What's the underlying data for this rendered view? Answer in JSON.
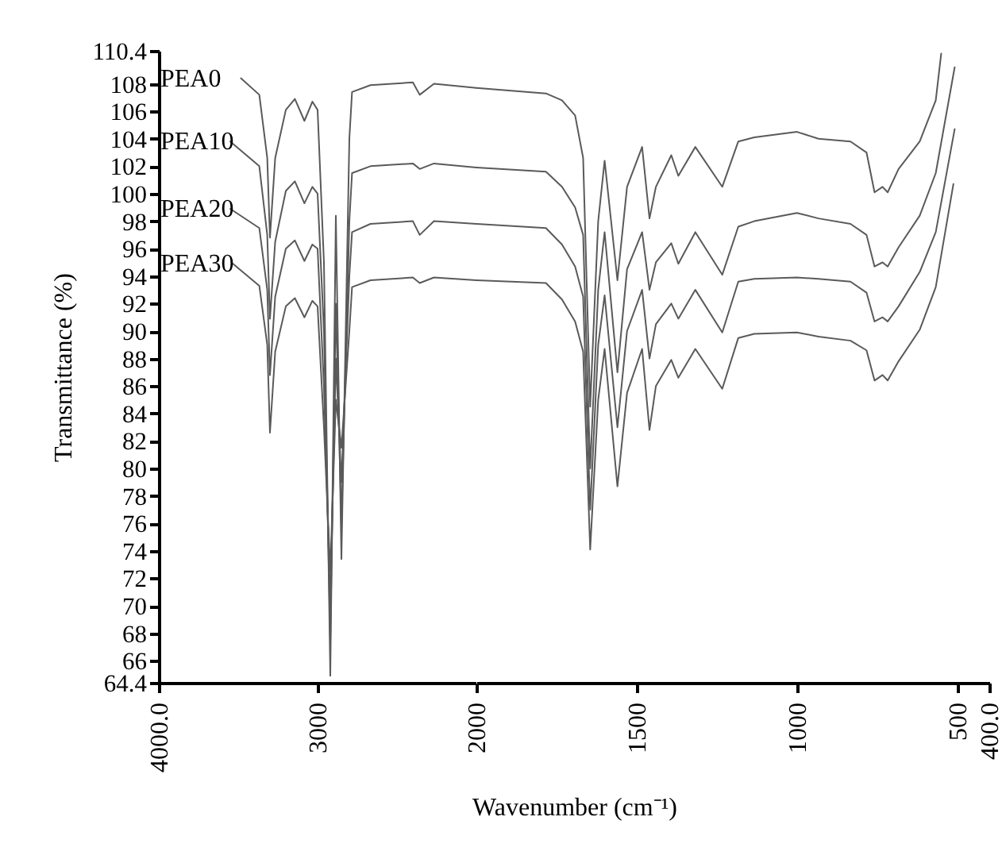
{
  "chart_data": [
    {
      "type": "line",
      "ylabel": "Transmittance (%)",
      "xlim": [
        4000,
        2000
      ],
      "xticks": [
        {
          "value": 4000,
          "label": "4000.0"
        },
        3000
      ],
      "ylim": [
        64.4,
        110.4
      ],
      "yticks": [
        64.4,
        66,
        68,
        70,
        72,
        74,
        76,
        78,
        80,
        82,
        84,
        86,
        88,
        90,
        92,
        94,
        96,
        98,
        100,
        102,
        104,
        106,
        108,
        110.4
      ],
      "grid": false,
      "legend": false,
      "series": [
        {
          "name": "PEA0",
          "color": "#5a5a5a",
          "x": [
            3483,
            3367,
            3317,
            3300,
            3267,
            3200,
            3143,
            3083,
            3033,
            3000,
            2960,
            2920,
            2885,
            2850,
            2800,
            2783,
            2667,
            2400,
            2357,
            2267,
            2000
          ],
          "values": [
            108.4,
            107.2,
            102.6,
            96.8,
            102.6,
            106.1,
            106.9,
            105.3,
            106.7,
            106.1,
            95.0,
            64.9,
            98.4,
            73.4,
            104.0,
            107.4,
            107.9,
            108.1,
            107.2,
            108.0,
            107.7
          ]
        },
        {
          "name": "PEA10",
          "color": "#5a5a5a",
          "x": [
            3550,
            3367,
            3317,
            3300,
            3267,
            3200,
            3143,
            3083,
            3033,
            3000,
            2960,
            2920,
            2885,
            2850,
            2800,
            2783,
            2667,
            2400,
            2357,
            2267,
            2000
          ],
          "values": [
            103.8,
            102.0,
            97,
            90.9,
            96.5,
            100.2,
            100.9,
            99.3,
            100.5,
            100.0,
            90,
            67.5,
            92,
            76,
            98,
            101.5,
            102.0,
            102.2,
            101.8,
            102.2,
            101.9
          ]
        },
        {
          "name": "PEA20",
          "color": "#5a5a5a",
          "x": [
            3550,
            3367,
            3317,
            3300,
            3267,
            3200,
            3143,
            3083,
            3033,
            3000,
            2960,
            2920,
            2885,
            2850,
            2800,
            2783,
            2667,
            2400,
            2357,
            2267,
            2000
          ],
          "values": [
            98.9,
            97.5,
            93,
            86.8,
            92.5,
            96.0,
            96.6,
            95.1,
            96.3,
            96.0,
            86,
            70.0,
            88,
            79,
            94,
            97.2,
            97.8,
            98.0,
            97.0,
            98.0,
            97.8
          ]
        },
        {
          "name": "PEA30",
          "color": "#5a5a5a",
          "x": [
            3533,
            3367,
            3317,
            3300,
            3267,
            3200,
            3143,
            3083,
            3033,
            3000,
            2960,
            2920,
            2885,
            2850,
            2800,
            2783,
            2667,
            2400,
            2357,
            2267,
            2000
          ],
          "values": [
            94.9,
            93.3,
            89,
            82.6,
            88.5,
            91.8,
            92.4,
            91.0,
            92.2,
            91.8,
            83,
            72.5,
            85,
            81.5,
            90,
            93.2,
            93.7,
            93.9,
            93.5,
            93.9,
            93.7
          ]
        }
      ]
    },
    {
      "type": "line",
      "xlabel": "Wavenumber (cm⁻¹)",
      "xlim": [
        2000,
        400
      ],
      "xticks": [
        2000,
        1500,
        1000,
        500,
        {
          "value": 400,
          "label": "400.0"
        }
      ],
      "ylim": [
        64.4,
        110.4
      ],
      "tick_labels": "x",
      "grid": false,
      "legend": false,
      "series": [
        {
          "color": "#5a5a5a",
          "x": [
            2000,
            1783,
            1733,
            1692,
            1667,
            1645,
            1620,
            1600,
            1560,
            1530,
            1483,
            1460,
            1440,
            1392,
            1370,
            1317,
            1233,
            1183,
            1133,
            1000,
            933,
            833,
            783,
            758,
            733,
            717,
            683,
            617,
            567,
            550
          ],
          "values": [
            107.7,
            107.3,
            106.8,
            105.7,
            102.6,
            84.5,
            98.0,
            102.4,
            93.7,
            100.5,
            103.4,
            98.2,
            100.5,
            102.8,
            101.3,
            103.4,
            100.5,
            103.8,
            104.1,
            104.5,
            104.0,
            103.8,
            103.0,
            100.1,
            100.5,
            100.1,
            101.8,
            103.8,
            106.8,
            110.2
          ]
        },
        {
          "color": "#5a5a5a",
          "x": [
            2000,
            1783,
            1733,
            1692,
            1667,
            1645,
            1620,
            1600,
            1560,
            1530,
            1483,
            1460,
            1440,
            1392,
            1370,
            1317,
            1233,
            1183,
            1133,
            1000,
            933,
            833,
            783,
            758,
            733,
            717,
            683,
            617,
            567,
            508
          ],
          "values": [
            101.9,
            101.6,
            100.5,
            99.0,
            97,
            80.0,
            93,
            97.2,
            87.0,
            94.5,
            97.2,
            93.0,
            95,
            96.4,
            94.9,
            97.2,
            94.1,
            97.6,
            98.0,
            98.6,
            98.2,
            97.8,
            97.0,
            94.7,
            95.0,
            94.7,
            96.1,
            98.4,
            101.5,
            109.2
          ]
        },
        {
          "color": "#5a5a5a",
          "x": [
            2000,
            1783,
            1733,
            1692,
            1667,
            1645,
            1620,
            1600,
            1560,
            1530,
            1483,
            1460,
            1440,
            1392,
            1370,
            1317,
            1233,
            1183,
            1133,
            1000,
            933,
            833,
            783,
            758,
            733,
            717,
            683,
            617,
            567,
            508
          ],
          "values": [
            97.8,
            97.5,
            96.3,
            94.7,
            92.5,
            77.0,
            89,
            92.6,
            83.0,
            90,
            93.0,
            88.0,
            90.5,
            92.0,
            90.9,
            93.0,
            89.9,
            93.6,
            93.8,
            93.9,
            93.8,
            93.6,
            92.8,
            90.7,
            91.0,
            90.7,
            91.8,
            94.3,
            97.2,
            104.7
          ]
        },
        {
          "color": "#5a5a5a",
          "x": [
            2000,
            1783,
            1733,
            1692,
            1667,
            1645,
            1620,
            1600,
            1560,
            1530,
            1483,
            1460,
            1440,
            1392,
            1370,
            1317,
            1233,
            1183,
            1133,
            1000,
            933,
            833,
            783,
            758,
            733,
            717,
            683,
            617,
            567,
            512
          ],
          "values": [
            93.7,
            93.5,
            92.3,
            90.7,
            88.5,
            74.1,
            85,
            88.7,
            78.7,
            85.5,
            88.7,
            82.8,
            86,
            87.9,
            86.6,
            88.7,
            85.8,
            89.5,
            89.8,
            89.9,
            89.6,
            89.3,
            88.6,
            86.4,
            86.8,
            86.4,
            87.8,
            90.1,
            93.2,
            100.7
          ]
        }
      ]
    }
  ]
}
